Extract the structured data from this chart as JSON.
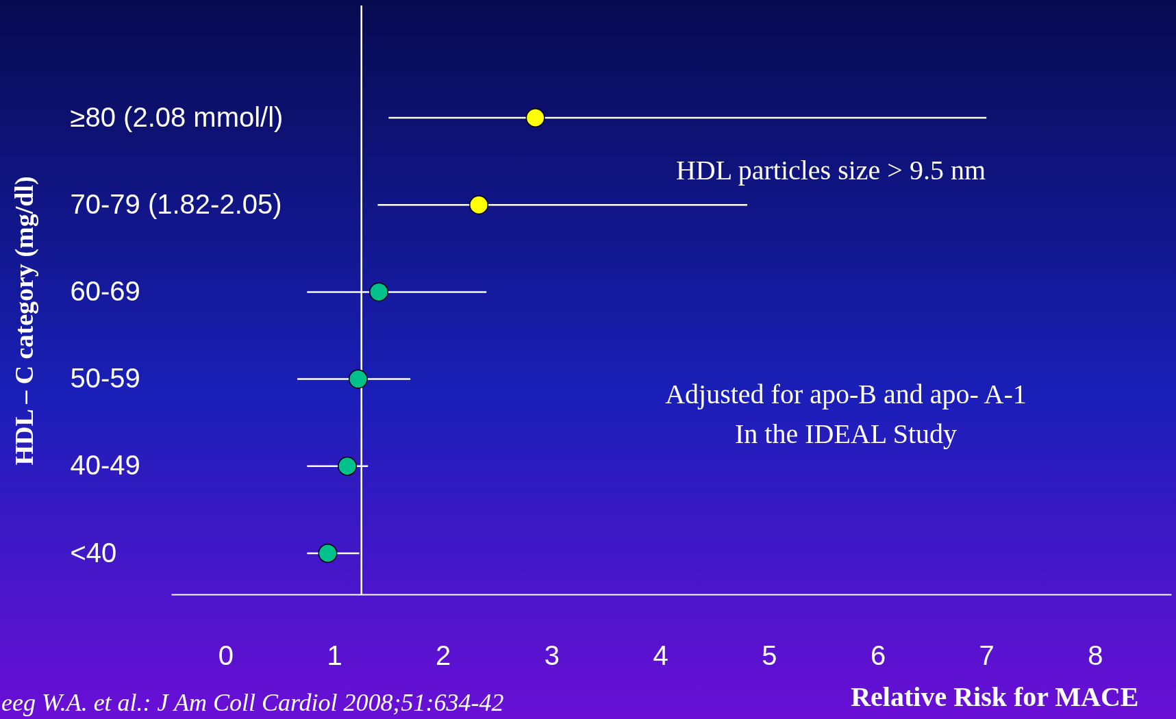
{
  "chart_data": {
    "type": "scatter",
    "orientation": "horizontal",
    "categories": [
      "≥80  (2.08 mmol/l)",
      "70-79 (1.82-2.05)",
      "60-69",
      "50-59",
      "40-49",
      "<40"
    ],
    "values": [
      2.85,
      2.33,
      1.41,
      1.22,
      1.12,
      0.94
    ],
    "errors": [
      [
        1.5,
        7.0
      ],
      [
        1.4,
        4.8
      ],
      [
        0.75,
        2.4
      ],
      [
        0.66,
        1.7
      ],
      [
        0.75,
        1.31
      ],
      [
        0.75,
        1.23
      ]
    ],
    "colors": [
      "#ffff00",
      "#ffff00",
      "#00c08b",
      "#00c08b",
      "#00c08b",
      "#00c08b"
    ],
    "marker": "circle",
    "grid": false,
    "xlim": [
      -0.5,
      8.7
    ],
    "xticks": [
      0,
      1,
      2,
      3,
      4,
      5,
      6,
      7,
      8
    ],
    "ref_lines": [
      {
        "axis": "x",
        "value": 1.25,
        "color": "#ffffff"
      }
    ],
    "xlabel": "Relative Risk for MACE",
    "ylabel": "HDL – C category (mg/dl)",
    "annotations": [
      "HDL particles size > 9.5 nm",
      "Adjusted for apo-B and apo- A-1\nIn the IDEAL Study",
      "eeg W.A. et al.: J Am Coll Cardiol 2008;51:634-42"
    ]
  }
}
